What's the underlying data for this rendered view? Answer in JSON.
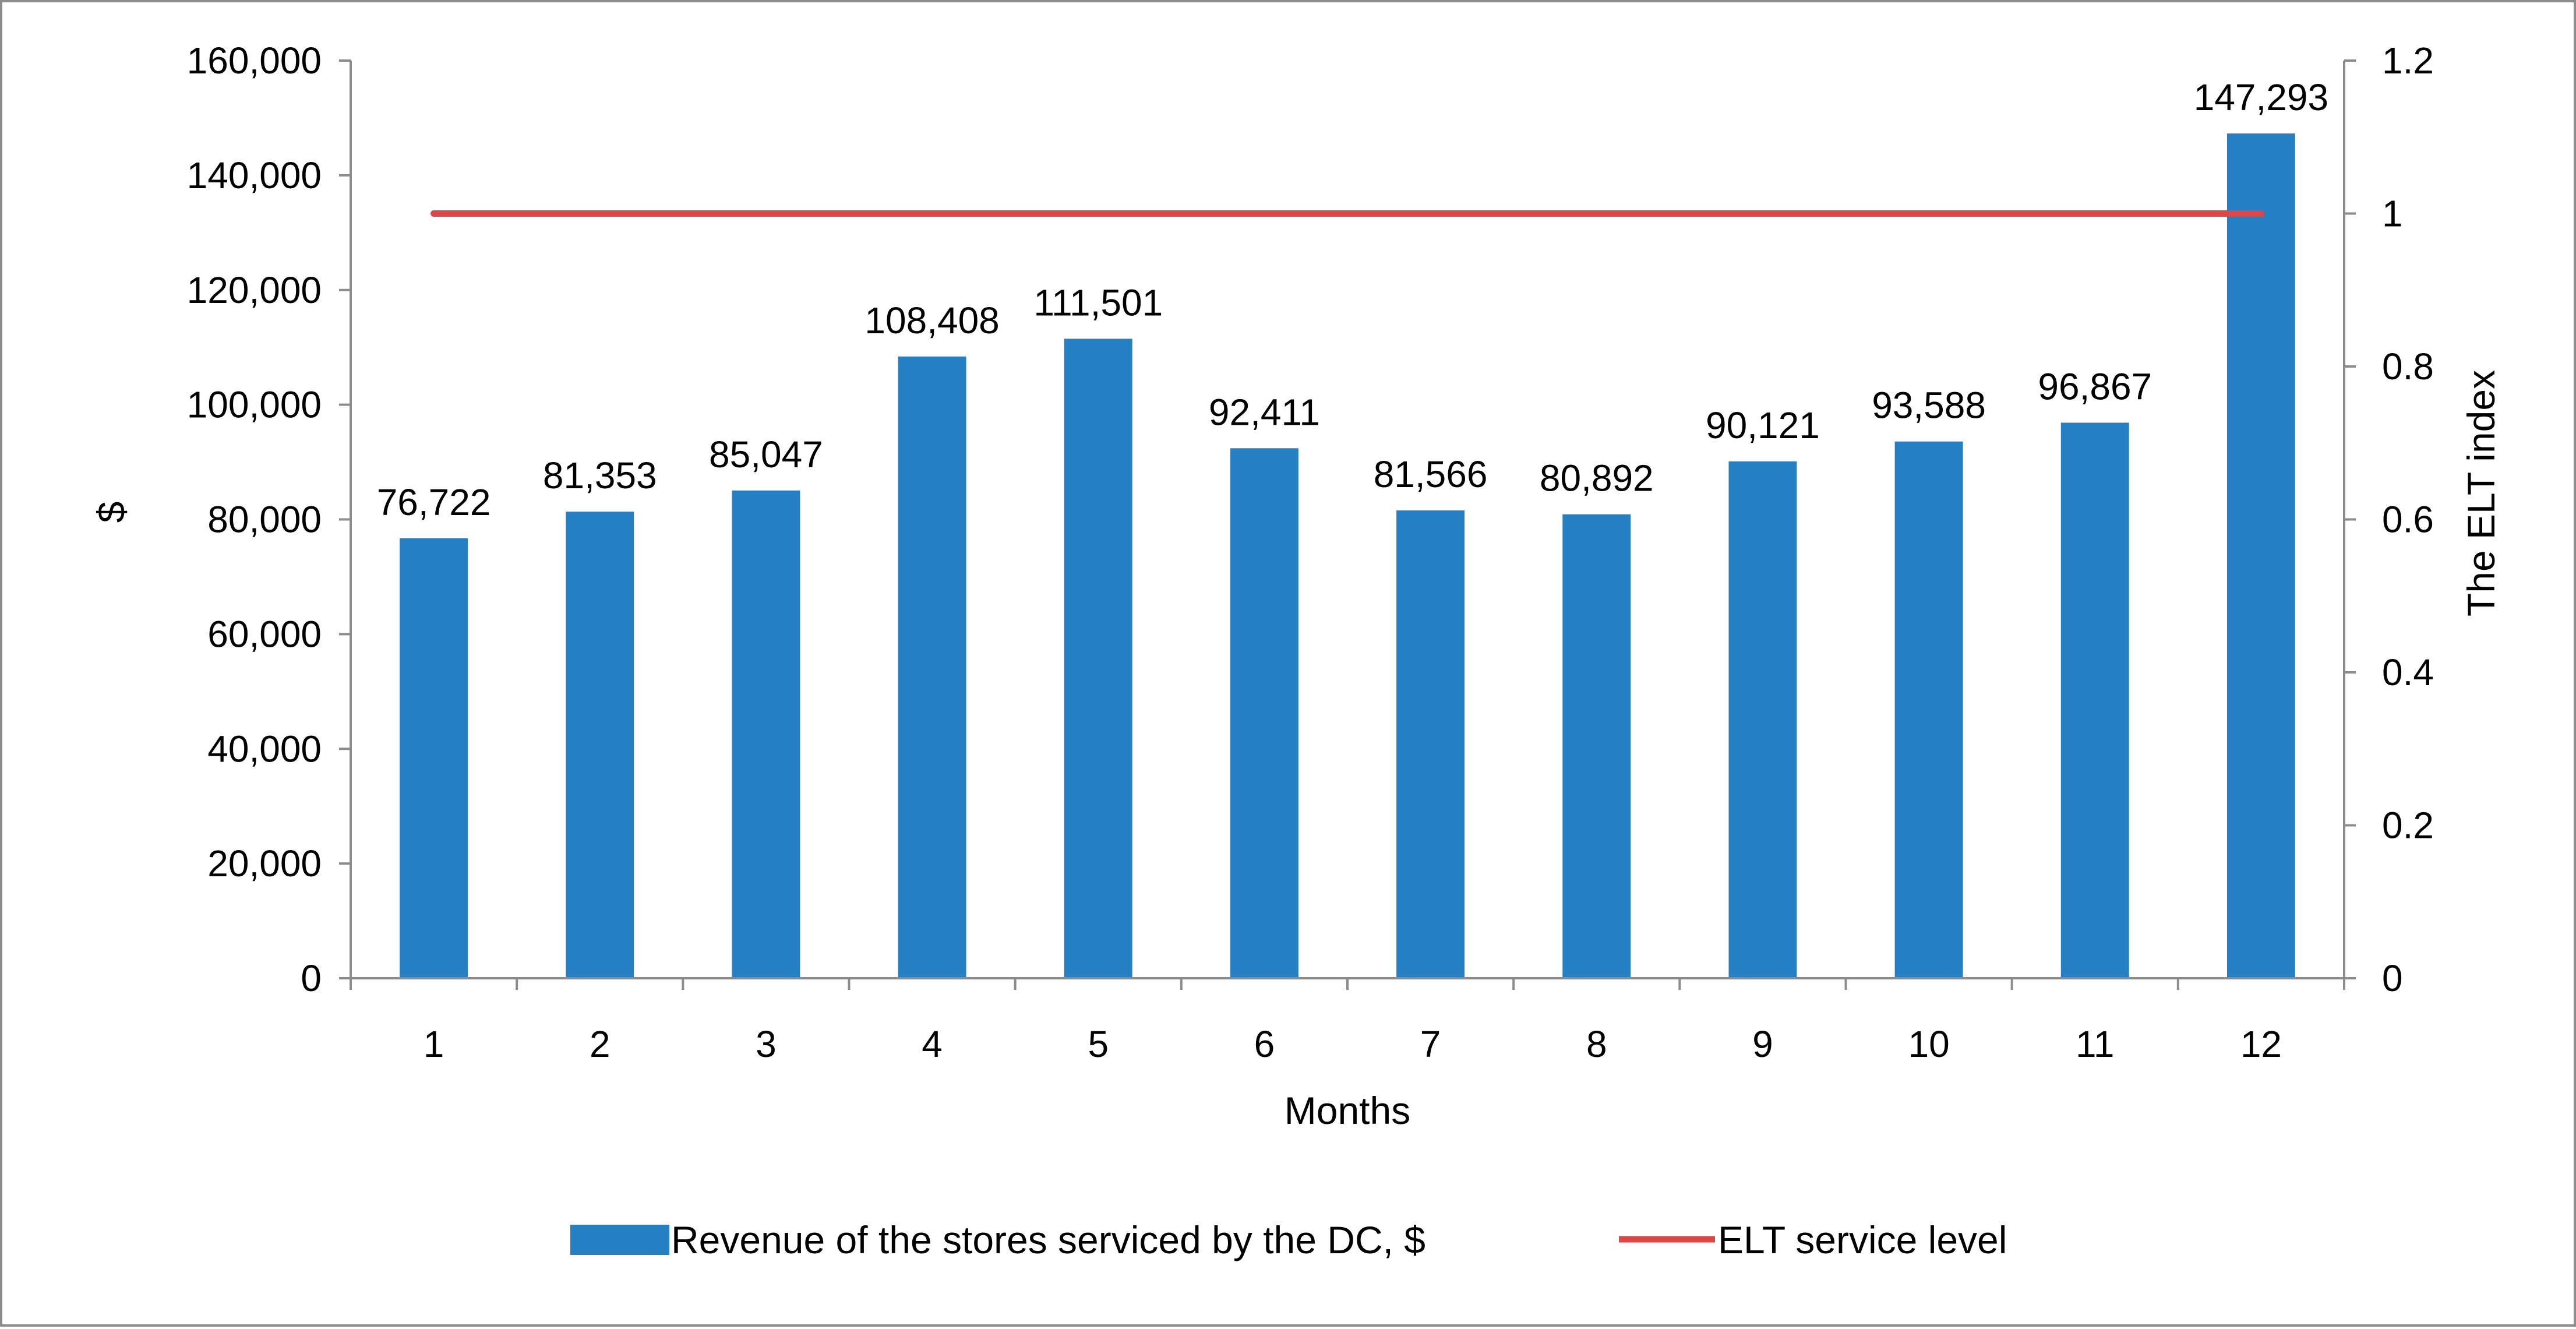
{
  "chart_data": {
    "type": "bar",
    "title": "",
    "xlabel": "Months",
    "ylabel": "$",
    "y2label": "The ELT index",
    "categories": [
      "1",
      "2",
      "3",
      "4",
      "5",
      "6",
      "7",
      "8",
      "9",
      "10",
      "11",
      "12"
    ],
    "ylim": [
      0,
      160000
    ],
    "y_ticks": [
      0,
      20000,
      40000,
      60000,
      80000,
      100000,
      120000,
      140000,
      160000
    ],
    "y_tick_labels": [
      "0",
      "20,000",
      "40,000",
      "60,000",
      "80,000",
      "100,000",
      "120,000",
      "140,000",
      "160,000"
    ],
    "y2lim": [
      0,
      1.2
    ],
    "y2_ticks": [
      0,
      0.2,
      0.4,
      0.6,
      0.8,
      1,
      1.2
    ],
    "y2_tick_labels": [
      "0",
      "0.2",
      "0.4",
      "0.6",
      "0.8",
      "1",
      "1.2"
    ],
    "grid": false,
    "legend_position": "bottom",
    "series": [
      {
        "name": "Revenue of the stores serviced by the DC, $",
        "type": "bar",
        "axis": "left",
        "color": "#2580c3",
        "values": [
          76722,
          81353,
          85047,
          108408,
          111501,
          92411,
          81566,
          80892,
          90121,
          93588,
          96867,
          147293
        ],
        "labels": [
          "76,722",
          "81,353",
          "85,047",
          "108,408",
          "111,501",
          "92,411",
          "81,566",
          "80,892",
          "90,121",
          "93,588",
          "96,867",
          "147,293"
        ]
      },
      {
        "name": "ELT service level",
        "type": "line",
        "axis": "right",
        "color": "#e04646",
        "values": [
          1,
          1,
          1,
          1,
          1,
          1,
          1,
          1,
          1,
          1,
          1,
          1
        ]
      }
    ]
  }
}
